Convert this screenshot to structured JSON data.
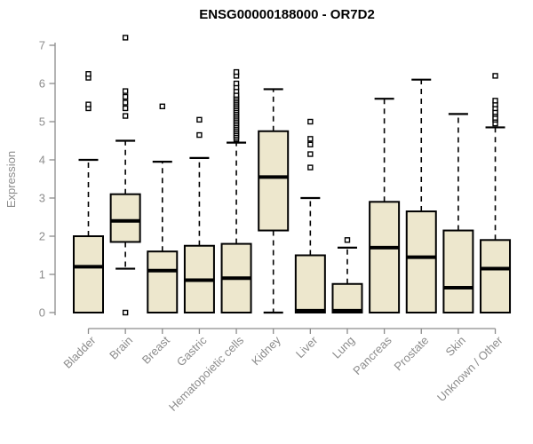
{
  "chart_data": {
    "type": "boxplot",
    "title": "ENSG00000188000 - OR7D2",
    "ylabel": "Expression",
    "xlabel": "",
    "ylim": [
      0,
      7
    ],
    "yticks": [
      0,
      1,
      2,
      3,
      4,
      5,
      6,
      7
    ],
    "grid": false,
    "legend": "none",
    "colors": {
      "box_fill": "#EDE7CD",
      "box_border": "#000000",
      "median": "#000000",
      "axis": "#8c8c8c",
      "title": "#000000",
      "background": "#ffffff"
    },
    "categories": [
      {
        "label": "Bladder",
        "whisker_low": 0,
        "q1": 0,
        "median": 1.2,
        "q3": 2.0,
        "whisker_high": 4.0,
        "outliers": [
          5.35,
          5.45,
          6.15,
          6.25
        ]
      },
      {
        "label": "Brain",
        "whisker_low": 1.15,
        "q1": 1.85,
        "median": 2.4,
        "q3": 3.1,
        "whisker_high": 4.5,
        "outliers": [
          0,
          5.15,
          5.35,
          5.5,
          5.65,
          5.8,
          7.2
        ]
      },
      {
        "label": "Breast",
        "whisker_low": 0,
        "q1": 0,
        "median": 1.1,
        "q3": 1.6,
        "whisker_high": 3.95,
        "outliers": [
          5.4
        ]
      },
      {
        "label": "Gastric",
        "whisker_low": 0,
        "q1": 0,
        "median": 0.85,
        "q3": 1.75,
        "whisker_high": 4.05,
        "outliers": [
          4.65,
          5.05
        ]
      },
      {
        "label": "Hematopoietic cells",
        "whisker_low": 0,
        "q1": 0,
        "median": 0.9,
        "q3": 1.8,
        "whisker_high": 4.45,
        "outliers": [
          4.55,
          4.6,
          4.65,
          4.7,
          4.75,
          4.8,
          4.85,
          4.9,
          4.95,
          5.0,
          5.05,
          5.1,
          5.15,
          5.2,
          5.25,
          5.3,
          5.35,
          5.4,
          5.45,
          5.5,
          5.55,
          5.6,
          5.65,
          5.7,
          5.8,
          5.9,
          6.0,
          6.2,
          6.3
        ]
      },
      {
        "label": "Kidney",
        "whisker_low": 0,
        "q1": 2.15,
        "median": 3.55,
        "q3": 4.75,
        "whisker_high": 5.85,
        "outliers": []
      },
      {
        "label": "Liver",
        "whisker_low": 0,
        "q1": 0,
        "median": 0.05,
        "q3": 1.5,
        "whisker_high": 3.0,
        "outliers": [
          3.8,
          4.15,
          4.4,
          4.55,
          5.0
        ]
      },
      {
        "label": "Lung",
        "whisker_low": 0,
        "q1": 0,
        "median": 0.05,
        "q3": 0.75,
        "whisker_high": 1.7,
        "outliers": [
          1.9
        ]
      },
      {
        "label": "Pancreas",
        "whisker_low": 0,
        "q1": 0,
        "median": 1.7,
        "q3": 2.9,
        "whisker_high": 5.6,
        "outliers": []
      },
      {
        "label": "Prostate",
        "whisker_low": 0,
        "q1": 0,
        "median": 1.45,
        "q3": 2.65,
        "whisker_high": 6.1,
        "outliers": []
      },
      {
        "label": "Skin",
        "whisker_low": 0,
        "q1": 0,
        "median": 0.65,
        "q3": 2.15,
        "whisker_high": 5.2,
        "outliers": []
      },
      {
        "label": "Unknown / Other",
        "whisker_low": 0,
        "q1": 0,
        "median": 1.15,
        "q3": 1.9,
        "whisker_high": 4.85,
        "outliers": [
          4.95,
          5.05,
          5.1,
          5.2,
          5.25,
          5.35,
          5.45,
          5.55,
          6.2
        ]
      }
    ]
  }
}
